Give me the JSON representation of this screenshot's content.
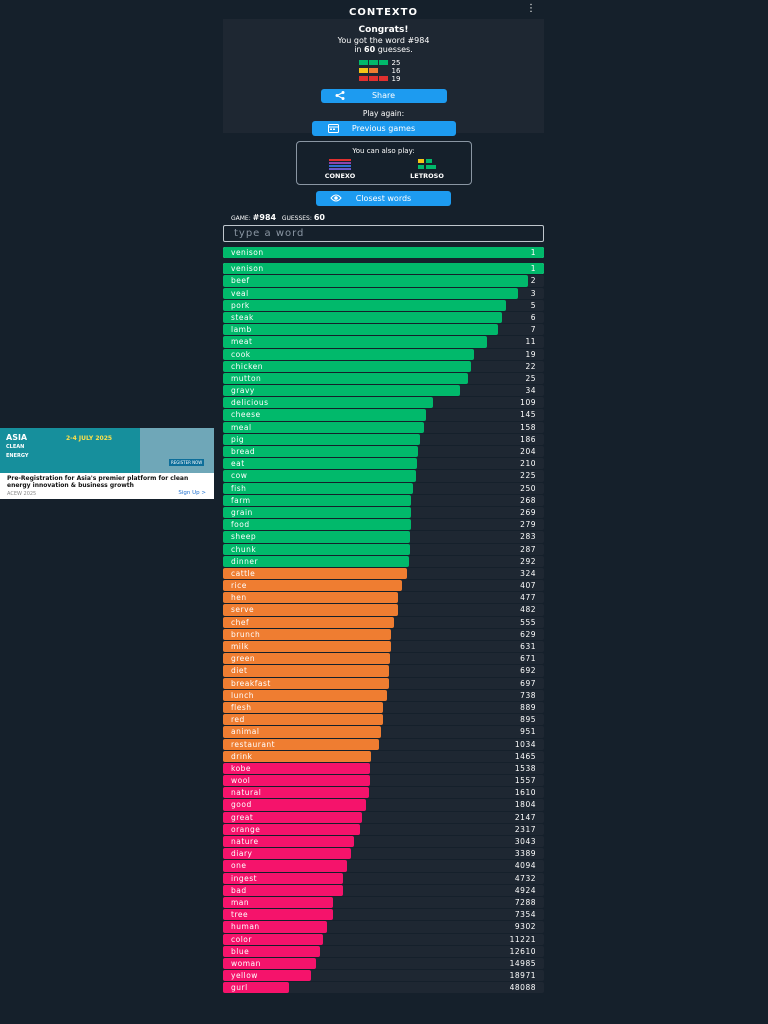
{
  "header": {
    "title": "CONTEXTO",
    "menu_icon": "⋮"
  },
  "result": {
    "title": "Congrats!",
    "line1": "You got the word #984",
    "line2_prefix": "in ",
    "guess_count": "60",
    "line2_suffix": " guesses.",
    "stats": [
      {
        "color": "#01b96b",
        "value": "25"
      },
      {
        "color": "#ef7d31",
        "value": "16"
      },
      {
        "color": "#f5136b",
        "value": "19"
      }
    ],
    "share_label": "Share",
    "play_again_label": "Play again:",
    "previous_label": "Previous games"
  },
  "also_play": {
    "label": "You can also play:",
    "games": [
      {
        "name": "CONEXO"
      },
      {
        "name": "LETROSO"
      }
    ]
  },
  "closest_label": "Closest words",
  "game_info": {
    "game_label": "GAME:",
    "game_no": "#984",
    "guesses_label": "GUESSES:",
    "guesses": "60"
  },
  "input": {
    "placeholder": "type a word"
  },
  "colors": {
    "green": "#01b96b",
    "orange": "#ef7d31",
    "pink": "#f5136b"
  },
  "last_guess": {
    "word": "venison",
    "rank": 1
  },
  "guesses": [
    {
      "word": "venison",
      "rank": 1
    },
    {
      "word": "beef",
      "rank": 2
    },
    {
      "word": "veal",
      "rank": 3
    },
    {
      "word": "pork",
      "rank": 5
    },
    {
      "word": "steak",
      "rank": 6
    },
    {
      "word": "lamb",
      "rank": 7
    },
    {
      "word": "meat",
      "rank": 11
    },
    {
      "word": "cook",
      "rank": 19
    },
    {
      "word": "chicken",
      "rank": 22
    },
    {
      "word": "mutton",
      "rank": 25
    },
    {
      "word": "gravy",
      "rank": 34
    },
    {
      "word": "delicious",
      "rank": 109
    },
    {
      "word": "cheese",
      "rank": 145
    },
    {
      "word": "meal",
      "rank": 158
    },
    {
      "word": "pig",
      "rank": 186
    },
    {
      "word": "bread",
      "rank": 204
    },
    {
      "word": "eat",
      "rank": 210
    },
    {
      "word": "cow",
      "rank": 225
    },
    {
      "word": "fish",
      "rank": 250
    },
    {
      "word": "farm",
      "rank": 268
    },
    {
      "word": "grain",
      "rank": 269
    },
    {
      "word": "food",
      "rank": 279
    },
    {
      "word": "sheep",
      "rank": 283
    },
    {
      "word": "chunk",
      "rank": 287
    },
    {
      "word": "dinner",
      "rank": 292
    },
    {
      "word": "cattle",
      "rank": 324
    },
    {
      "word": "rice",
      "rank": 407
    },
    {
      "word": "hen",
      "rank": 477
    },
    {
      "word": "serve",
      "rank": 482
    },
    {
      "word": "chef",
      "rank": 555
    },
    {
      "word": "brunch",
      "rank": 629
    },
    {
      "word": "milk",
      "rank": 631
    },
    {
      "word": "green",
      "rank": 671
    },
    {
      "word": "diet",
      "rank": 692
    },
    {
      "word": "breakfast",
      "rank": 697
    },
    {
      "word": "lunch",
      "rank": 738
    },
    {
      "word": "flesh",
      "rank": 889
    },
    {
      "word": "red",
      "rank": 895
    },
    {
      "word": "animal",
      "rank": 951
    },
    {
      "word": "restaurant",
      "rank": 1034
    },
    {
      "word": "drink",
      "rank": 1465
    },
    {
      "word": "kobe",
      "rank": 1538
    },
    {
      "word": "wool",
      "rank": 1557
    },
    {
      "word": "natural",
      "rank": 1610
    },
    {
      "word": "good",
      "rank": 1804
    },
    {
      "word": "great",
      "rank": 2147
    },
    {
      "word": "orange",
      "rank": 2317
    },
    {
      "word": "nature",
      "rank": 3043
    },
    {
      "word": "diary",
      "rank": 3389
    },
    {
      "word": "one",
      "rank": 4094
    },
    {
      "word": "ingest",
      "rank": 4732
    },
    {
      "word": "bad",
      "rank": 4924
    },
    {
      "word": "man",
      "rank": 7288
    },
    {
      "word": "tree",
      "rank": 7354
    },
    {
      "word": "human",
      "rank": 9302
    },
    {
      "word": "color",
      "rank": 11221
    },
    {
      "word": "blue",
      "rank": 12610
    },
    {
      "word": "woman",
      "rank": 14985
    },
    {
      "word": "yellow",
      "rank": 18971
    },
    {
      "word": "gurl",
      "rank": 48088
    }
  ],
  "ad": {
    "brand_line1": "ASIA",
    "brand_line2": "CLEAN",
    "brand_line3": "ENERGY",
    "dates": "2-4 JULY 2025",
    "register": "REGISTER NOW",
    "headline": "Pre-Registration for Asia's premier platform for clean energy innovation & business growth",
    "source": "ACEW 2025",
    "cta": "Sign Up"
  }
}
